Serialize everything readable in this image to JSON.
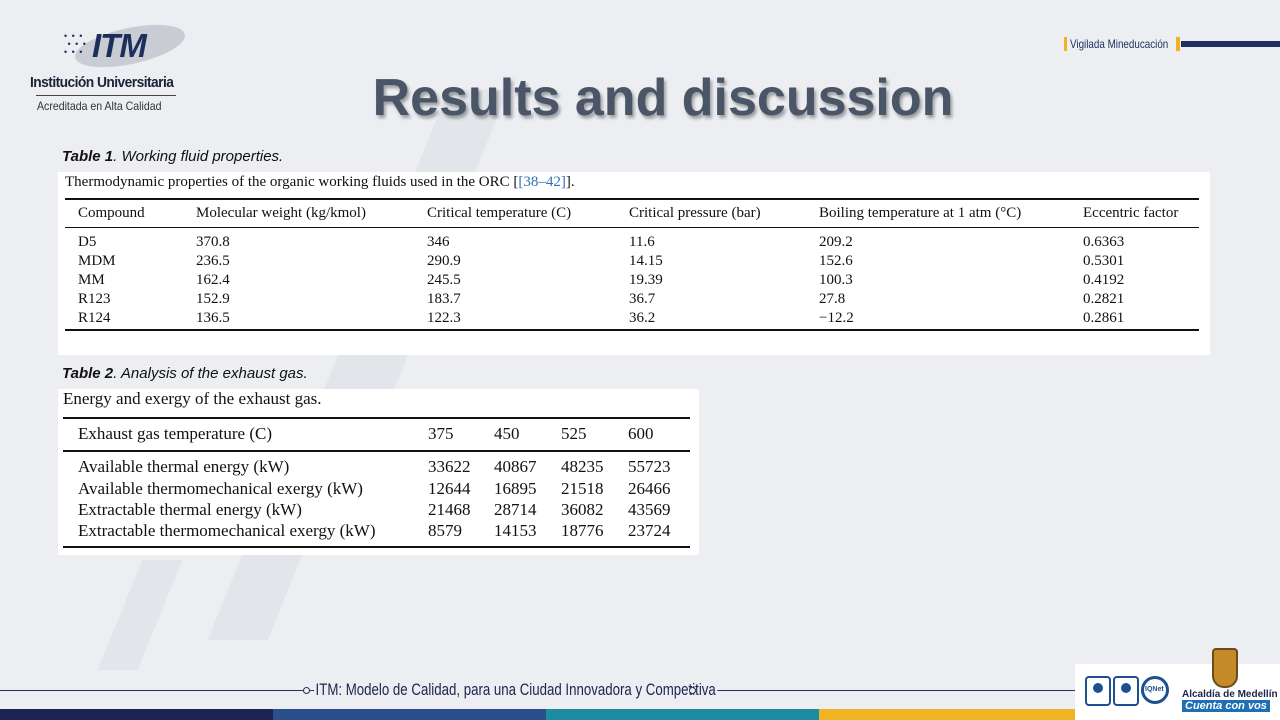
{
  "header": {
    "logo_text": "ITM",
    "institution": "Institución Universitaria",
    "accreditation": "Acreditada en Alta Calidad",
    "vigilada": "Vigilada Mineducación"
  },
  "slide": {
    "title": "Results and discussion"
  },
  "table1": {
    "caption_label": "Table 1",
    "caption_text": ". Working fluid properties.",
    "description": "Thermodynamic properties of the organic working fluids used in the ORC [",
    "description_ref": "[38–42]",
    "description_end": "].",
    "headers": [
      "Compound",
      "Molecular weight (kg/kmol)",
      "Critical temperature (C)",
      "Critical pressure (bar)",
      "Boiling temperature at 1 atm (°C)",
      "Eccentric factor"
    ],
    "rows": [
      [
        "D5",
        "370.8",
        "346",
        "11.6",
        "209.2",
        "0.6363"
      ],
      [
        "MDM",
        "236.5",
        "290.9",
        "14.15",
        "152.6",
        "0.5301"
      ],
      [
        "MM",
        "162.4",
        "245.5",
        "19.39",
        "100.3",
        "0.4192"
      ],
      [
        "R123",
        "152.9",
        "183.7",
        "36.7",
        "27.8",
        "0.2821"
      ],
      [
        "R124",
        "136.5",
        "122.3",
        "36.2",
        "−12.2",
        "0.2861"
      ]
    ]
  },
  "table2": {
    "caption_label": "Table 2",
    "caption_text": ". Analysis of the exhaust gas.",
    "description": "Energy and exergy of the exhaust gas.",
    "headers": [
      "Exhaust gas temperature (C)",
      "375",
      "450",
      "525",
      "600"
    ],
    "rows": [
      [
        "Available thermal energy (kW)",
        "33622",
        "40867",
        "48235",
        "55723"
      ],
      [
        "Available thermomechanical exergy (kW)",
        "12644",
        "16895",
        "21518",
        "26466"
      ],
      [
        "Extractable thermal energy (kW)",
        "21468",
        "28714",
        "36082",
        "43569"
      ],
      [
        "Extractable thermomechanical exergy (kW)",
        "8579",
        "14153",
        "18776",
        "23724"
      ]
    ]
  },
  "footer": {
    "motto": "ITM: Modelo de Calidad, para una Ciudad Innovadora y Competitiva",
    "city": "Alcaldía de Medellín",
    "slogan": "Cuenta con vos",
    "bar_colors": [
      "#1d2350",
      "#2b4f8a",
      "#1e8aa0",
      "#f0b323"
    ]
  }
}
